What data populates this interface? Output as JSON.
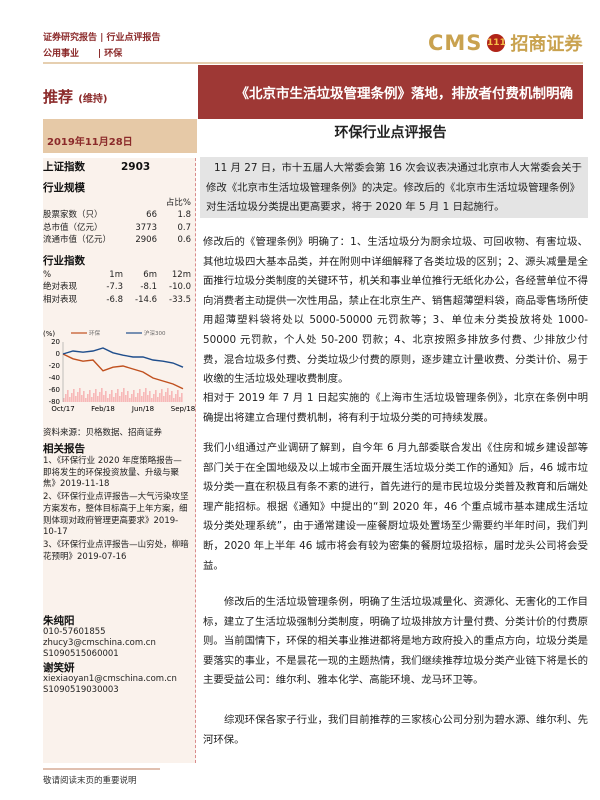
{
  "header": {
    "line1": "证券研究报告 | 行业点评报告",
    "line2_left": "公用事业",
    "line2_right": "| 环保",
    "logo_text": "CMS",
    "logo_cn": "招商证券"
  },
  "banner": {
    "title": "《北京市生活垃圾管理条例》落地，排放者付费机制明确"
  },
  "rating": {
    "label": "推荐",
    "sub": "(维持)"
  },
  "date": "2019年11月28日",
  "report_type": "环保行业点评报告",
  "sidebar": {
    "index_label": "上证指数",
    "index_value": "2903",
    "scale_title": "行业规模",
    "scale_col": "占比%",
    "scale_rows": [
      [
        "股票家数（只）",
        "66",
        "1.8"
      ],
      [
        "总市值（亿元）",
        "3773",
        "0.7"
      ],
      [
        "流通市值（亿元）",
        "2906",
        "0.6"
      ]
    ],
    "perf_title": "行业指数",
    "perf_head": [
      "%",
      "1m",
      "6m",
      "12m"
    ],
    "perf_rows": [
      [
        "绝对表现",
        "-7.3",
        "-8.1",
        "-10.0"
      ],
      [
        "相对表现",
        "-6.8",
        "-14.6",
        "-33.5"
      ]
    ],
    "source": "资料来源：贝格数据、招商证券",
    "related_title": "相关报告",
    "related": [
      "1、《环保行业 2020 年度策略报告—即将发生的环保投资放量、升级与聚焦》2019-11-18",
      "2、《环保行业点评报告—大气污染攻坚方案发布，整体目标高于上年方案，细则体现对政府管理更高要求》2019-10-17",
      "3、《环保行业点评报告—山穷处，柳暗花预明》2019-07-16"
    ],
    "analysts": [
      {
        "name": "朱纯阳",
        "lines": [
          "010-57601855",
          "zhucy3@cmschina.com.cn",
          "S1090515060001"
        ]
      },
      {
        "name": "谢笑妍",
        "lines": [
          "xiexiaoyan1@cmschina.com.cn",
          "S1090519030003"
        ]
      }
    ]
  },
  "chart_data": {
    "type": "line",
    "ylabel": "(%)",
    "ylim": [
      -80,
      20
    ],
    "yticks": [
      20,
      0,
      -20,
      -40,
      -60,
      -80
    ],
    "xticks": [
      "Oct/17",
      "Feb/18",
      "Jun/18",
      "Sep/18"
    ],
    "series": [
      {
        "name": "环保",
        "color": "#c0501e",
        "values": [
          0,
          -8,
          -12,
          -10,
          -28,
          -22,
          -20,
          -25,
          -30,
          -40,
          -45,
          -50,
          -58
        ]
      },
      {
        "name": "沪深300",
        "color": "#1f4e8c",
        "values": [
          0,
          5,
          3,
          5,
          10,
          2,
          -2,
          -5,
          -5,
          -10,
          -12,
          -15,
          -22
        ]
      }
    ]
  },
  "body": {
    "summary": "11 月 27 日，市十五届人大常委会第 16 次会议表决通过北京市人大常委会关于修改《北京市生活垃圾管理条例》的决定。修改后的《北京市生活垃圾管理条例》对生活垃圾分类提出更高要求，将于 2020 年 5 月 1 日起施行。",
    "p1": "修改后的《管理条例》明确了：1、生活垃圾分为厨余垃圾、可回收物、有害垃圾、其他垃圾四大基本品类，并在附则中详细解释了各类垃圾的区别；2、源头减量是全面推行垃圾分类制度的关键环节，机关和事业单位推行无纸化办公，各经营单位不得向消费者主动提供一次性用品，禁止在北京生产、销售超薄塑料袋，商品零售场所使用超薄塑料袋将处以 5000-50000 元罚款等；3、单位未分类投放将处 1000-50000 元罚款，个人处 50-200 罚款；4、北京按照多排放多付费、少排放少付费，混合垃圾多付费、分类垃圾少付费的原则，逐步建立计量收费、分类计价、易于收缴的生活垃圾处理收费制度。",
    "p2": "相对于 2019 年 7 月 1 日起实施的《上海市生活垃圾管理条例》，北京在条例中明确提出将建立合理付费机制，将有利于垃圾分类的可持续发展。",
    "p3": "我们小组通过产业调研了解到，自今年 6 月九部委联合发出《住房和城乡建设部等部门关于在全国地级及以上城市全面开展生活垃圾分类工作的通知》后，46 城市垃圾分类一直在积极且有条不紊的进行，首先进行的是市民垃圾分类普及教育和后端处理产能招标。根据《通知》中提出的“到 2020 年，46 个重点城市基本建成生活垃圾分类处理系统”，由于通常建设一座餐厨垃圾处置场至少需要约半年时间，我们判断，2020 年上半年 46 城市将会有较为密集的餐厨垃圾招标，届时龙头公司将会受益。",
    "p4": "修改后的生活垃圾管理条例，明确了生活垃圾减量化、资源化、无害化的工作目标，建立了生活垃圾强制分类制度，明确了垃圾排放方计量付费、分类计价的付费原则。当前国情下，环保的相关事业推进都将是地方政府投入的重点方向，垃圾分类是要落实的事业，不是昙花一现的主题热情，我们继续推荐垃圾分类产业链下将是长的主要受益公司：维尔利、雅本化学、高能环境、龙马环卫等。",
    "p5": "综观环保各家子行业，我们目前推荐的三家核心公司分别为碧水源、维尔利、先河环保。"
  },
  "footer": "敬请阅读末页的重要说明"
}
